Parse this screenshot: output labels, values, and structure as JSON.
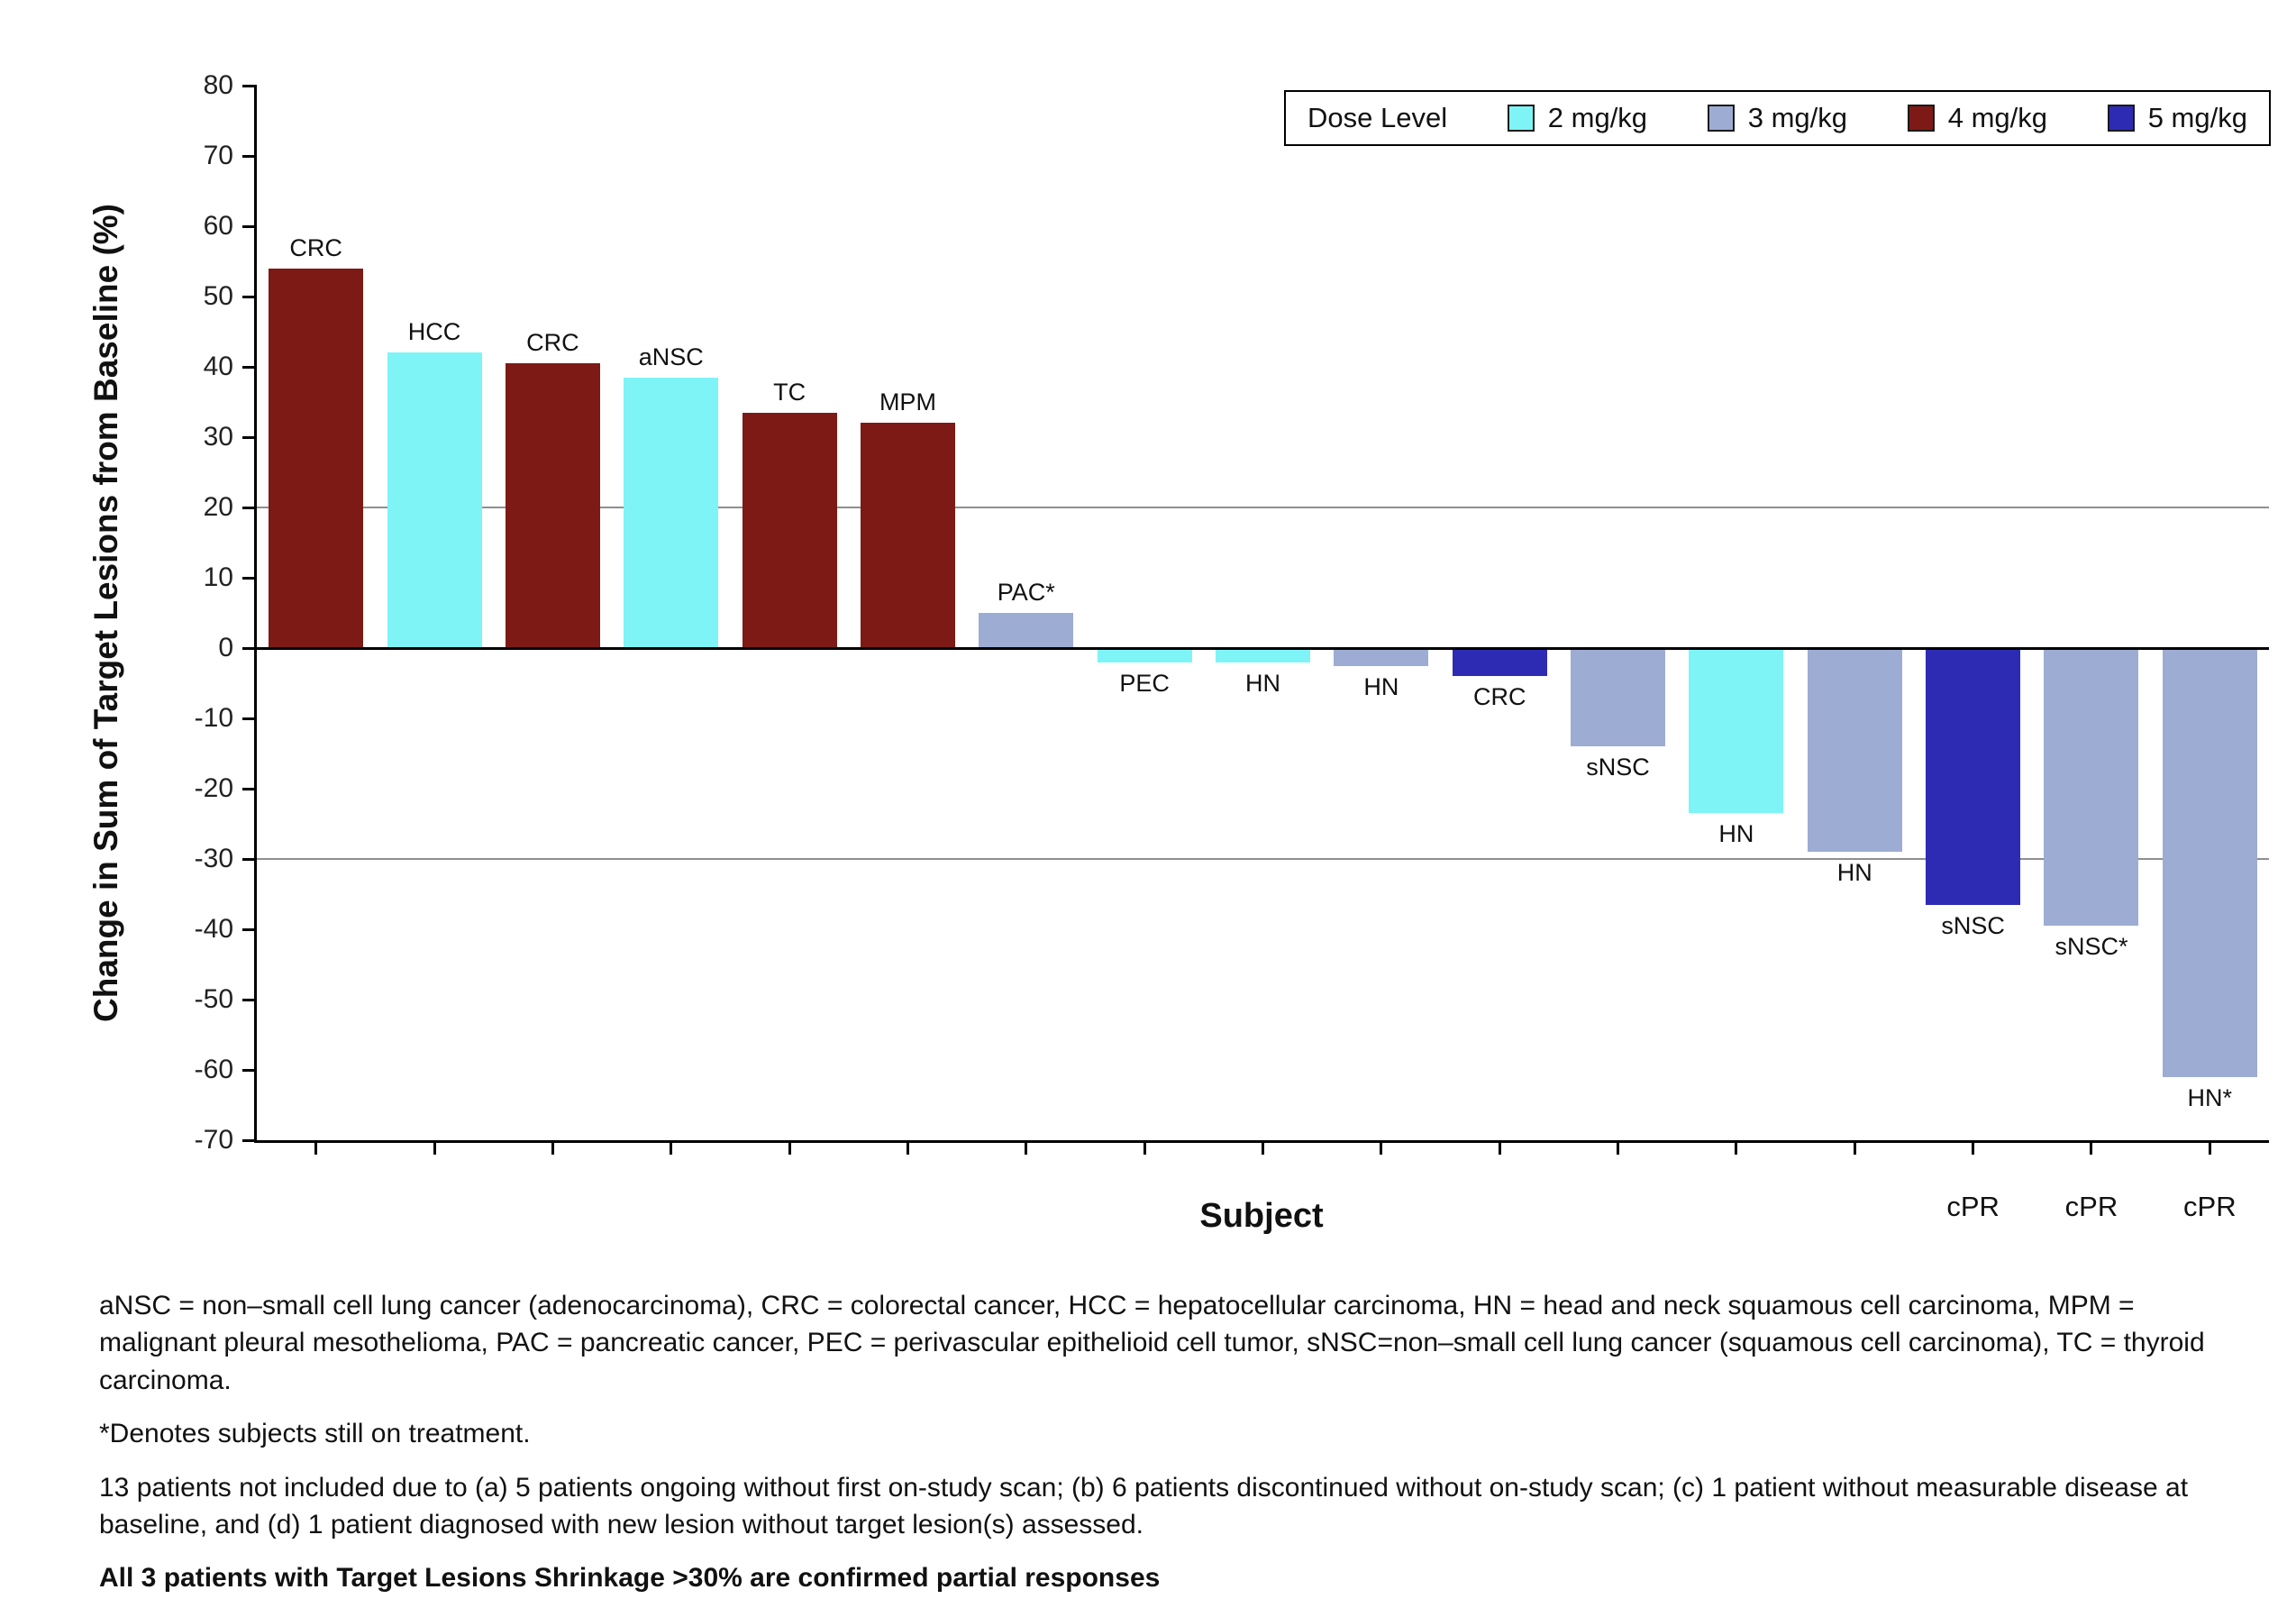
{
  "chart_data": {
    "type": "bar",
    "subtype": "waterfall",
    "title": "",
    "xlabel": "Subject",
    "ylabel": "Change in Sum of Target Lesions from Baseline (%)",
    "ylim": [
      -70,
      80
    ],
    "ytick_step": 10,
    "reference_lines": [
      20,
      -30
    ],
    "grid": false,
    "legend": {
      "title": "Dose Level",
      "position": "top-right",
      "entries": [
        {
          "label": "2 mg/kg",
          "color": "#7ef4f6"
        },
        {
          "label": "3 mg/kg",
          "color": "#9dacd2"
        },
        {
          "label": "4 mg/kg",
          "color": "#7e1a15"
        },
        {
          "label": "5 mg/kg",
          "color": "#2d2bb4"
        }
      ]
    },
    "bars": [
      {
        "label": "CRC",
        "value": 54,
        "dose": "4 mg/kg"
      },
      {
        "label": "HCC",
        "value": 42,
        "dose": "2 mg/kg"
      },
      {
        "label": "CRC",
        "value": 40.5,
        "dose": "4 mg/kg"
      },
      {
        "label": "aNSC",
        "value": 38.5,
        "dose": "2 mg/kg"
      },
      {
        "label": "TC",
        "value": 33.5,
        "dose": "4 mg/kg"
      },
      {
        "label": "MPM",
        "value": 32,
        "dose": "4 mg/kg"
      },
      {
        "label": "PAC*",
        "value": 5,
        "dose": "3 mg/kg"
      },
      {
        "label": "PEC",
        "value": -2,
        "dose": "2 mg/kg"
      },
      {
        "label": "HN",
        "value": -2,
        "dose": "2 mg/kg"
      },
      {
        "label": "HN",
        "value": -2.5,
        "dose": "3 mg/kg"
      },
      {
        "label": "CRC",
        "value": -4,
        "dose": "5 mg/kg"
      },
      {
        "label": "sNSC",
        "value": -14,
        "dose": "3 mg/kg"
      },
      {
        "label": "HN",
        "value": -23.5,
        "dose": "2 mg/kg"
      },
      {
        "label": "HN",
        "value": -29,
        "dose": "3 mg/kg"
      },
      {
        "label": "sNSC",
        "value": -36.5,
        "dose": "5 mg/kg",
        "annotation": "cPR"
      },
      {
        "label": "sNSC*",
        "value": -39.5,
        "dose": "3 mg/kg",
        "annotation": "cPR"
      },
      {
        "label": "HN*",
        "value": -61,
        "dose": "3 mg/kg",
        "annotation": "cPR"
      }
    ]
  },
  "footnotes": {
    "abbreviations": "aNSC = non–small cell lung cancer (adenocarcinoma), CRC = colorectal cancer, HCC = hepatocellular carcinoma, HN = head and neck squamous cell carcinoma, MPM = malignant pleural mesothelioma, PAC = pancreatic cancer, PEC = perivascular epithelioid cell tumor, sNSC=non–small cell lung cancer (squamous cell carcinoma), TC = thyroid carcinoma.",
    "on_treatment": "*Denotes subjects still on treatment.",
    "excluded": "13 patients not included due to (a) 5 patients ongoing without first on-study scan;  (b) 6 patients discontinued without on-study scan; (c) 1 patient without measurable disease at baseline, and (d) 1 patient diagnosed with new lesion without target lesion(s) assessed.",
    "confirmed": "All 3 patients with Target Lesions Shrinkage >30% are confirmed partial responses"
  }
}
